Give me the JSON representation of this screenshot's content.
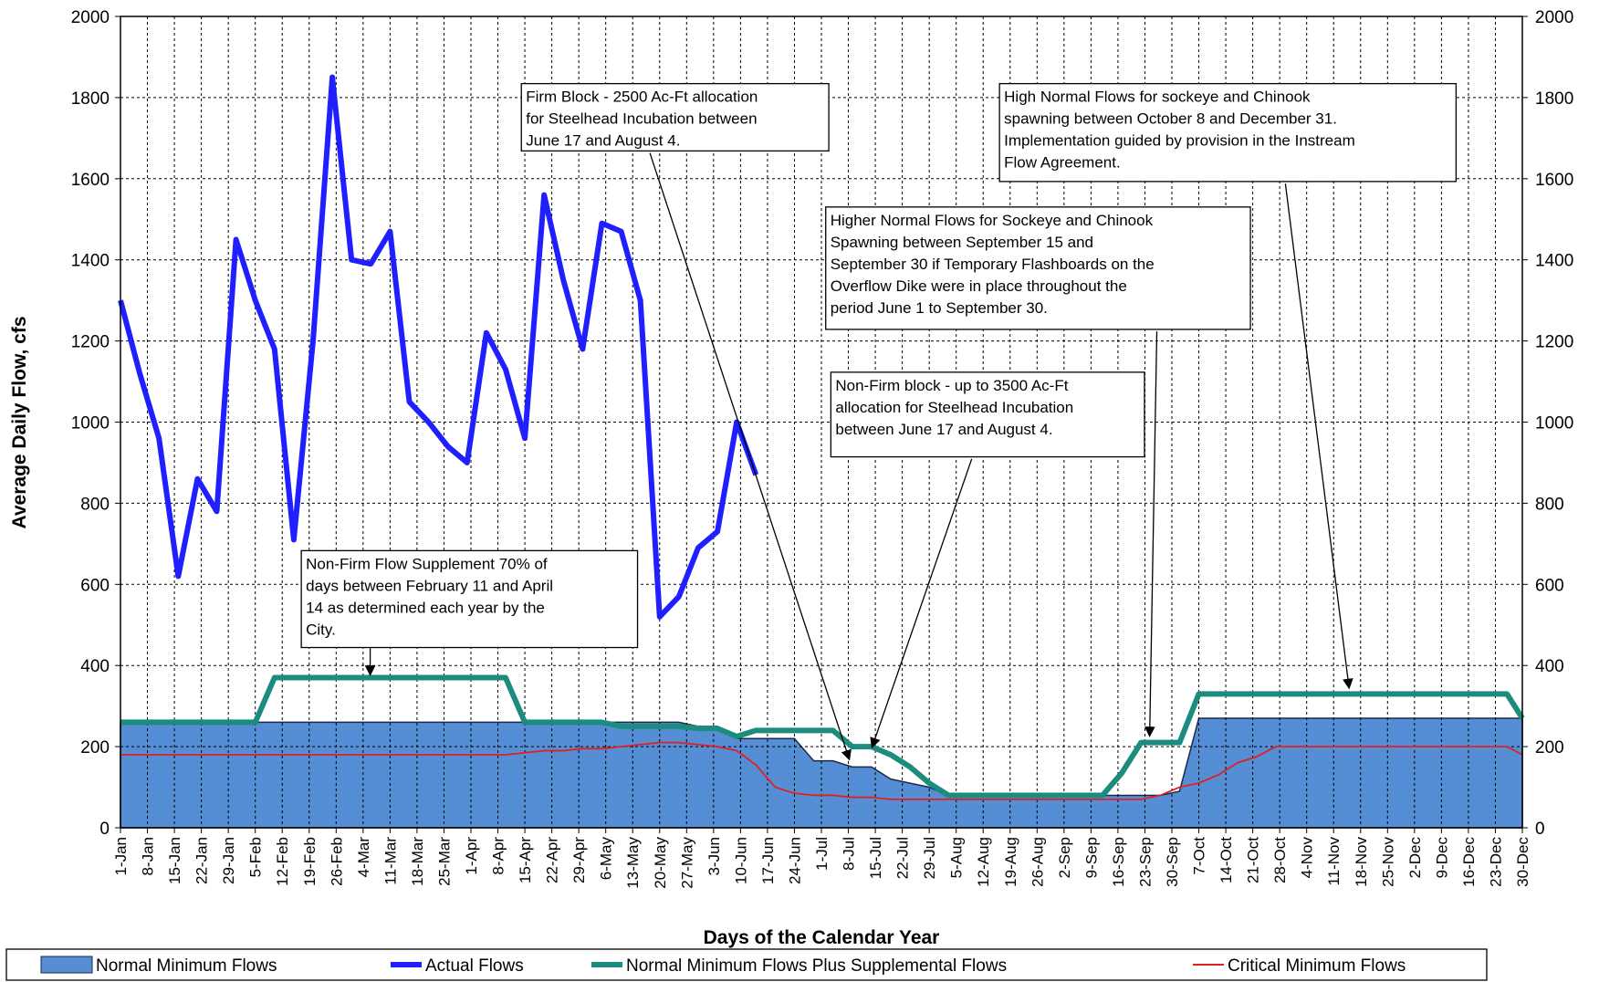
{
  "chart_data": {
    "type": "line",
    "xlabel": "Days of the Calendar Year",
    "ylabel": "Average Daily Flow, cfs",
    "x": [
      0,
      5,
      10,
      15,
      20,
      25,
      30,
      35,
      40,
      45,
      50,
      55,
      60,
      65,
      70,
      75,
      80,
      85,
      90,
      95,
      100,
      105,
      110,
      115,
      120,
      125,
      130,
      135,
      140,
      145,
      150,
      155,
      160,
      165,
      170,
      175,
      180,
      185,
      190,
      195,
      200,
      205,
      210,
      215,
      220,
      225,
      230,
      235,
      240,
      245,
      250,
      255,
      260,
      265,
      270,
      275,
      280,
      285,
      290,
      295,
      300,
      305,
      310,
      315,
      320,
      325,
      330,
      335,
      340,
      345,
      350,
      355,
      360,
      364
    ],
    "series": [
      {
        "name": "Normal Minimum Flows",
        "kind": "area",
        "color": "#558ed5",
        "values": [
          260,
          260,
          260,
          260,
          260,
          260,
          260,
          260,
          260,
          260,
          260,
          260,
          260,
          260,
          260,
          260,
          260,
          260,
          260,
          260,
          260,
          260,
          260,
          260,
          260,
          260,
          260,
          260,
          260,
          260,
          250,
          250,
          220,
          220,
          220,
          220,
          165,
          165,
          150,
          150,
          120,
          110,
          100,
          80,
          80,
          80,
          80,
          80,
          80,
          80,
          80,
          80,
          80,
          80,
          80,
          90,
          270,
          270,
          270,
          270,
          270,
          270,
          270,
          270,
          270,
          270,
          270,
          270,
          270,
          270,
          270,
          270,
          270,
          270
        ]
      },
      {
        "name": "Actual Flows",
        "kind": "line",
        "color": "#1f1fff",
        "values": [
          1300,
          1120,
          960,
          620,
          860,
          780,
          1450,
          1300,
          1180,
          710,
          1200,
          1850,
          1400,
          1390,
          1470,
          1050,
          1000,
          940,
          900,
          1220,
          1130,
          960,
          1560,
          1350,
          1180,
          1490,
          1470,
          1300,
          520,
          570,
          690,
          730,
          1000,
          870,
          null,
          null,
          null,
          null,
          null,
          null,
          null,
          null,
          null,
          null,
          null,
          null,
          null,
          null,
          null,
          null,
          null,
          null,
          null,
          null,
          null,
          null,
          null,
          null,
          null,
          null,
          null,
          null,
          null,
          null,
          null,
          null,
          null,
          null,
          null,
          null,
          null,
          null,
          null,
          null
        ]
      },
      {
        "name": "Normal Minimum Flows Plus Supplemental Flows",
        "kind": "line",
        "color": "#1b8c7d",
        "values": [
          260,
          260,
          260,
          260,
          260,
          260,
          260,
          260,
          370,
          370,
          370,
          370,
          370,
          370,
          370,
          370,
          370,
          370,
          370,
          370,
          370,
          260,
          260,
          260,
          260,
          260,
          250,
          250,
          250,
          250,
          245,
          245,
          225,
          240,
          240,
          240,
          240,
          240,
          200,
          200,
          180,
          150,
          110,
          80,
          80,
          80,
          80,
          80,
          80,
          80,
          80,
          80,
          135,
          210,
          210,
          210,
          330,
          330,
          330,
          330,
          330,
          330,
          330,
          330,
          330,
          330,
          330,
          330,
          330,
          330,
          330,
          330,
          330,
          270
        ]
      },
      {
        "name": "Critical Minimum Flows",
        "kind": "line",
        "color": "#e02020",
        "values": [
          180,
          180,
          180,
          180,
          180,
          180,
          180,
          180,
          180,
          180,
          180,
          180,
          180,
          180,
          180,
          180,
          180,
          180,
          180,
          180,
          180,
          185,
          190,
          190,
          195,
          195,
          200,
          205,
          210,
          210,
          205,
          200,
          190,
          155,
          100,
          85,
          80,
          80,
          75,
          75,
          70,
          70,
          70,
          70,
          70,
          70,
          70,
          70,
          70,
          70,
          70,
          70,
          70,
          70,
          80,
          100,
          110,
          130,
          160,
          175,
          200,
          200,
          200,
          200,
          200,
          200,
          200,
          200,
          200,
          200,
          200,
          200,
          200,
          180
        ]
      }
    ],
    "xlim": [
      0,
      364
    ],
    "xticks": [
      {
        "value": 0,
        "label": "1-Jan"
      },
      {
        "value": 7,
        "label": "8-Jan"
      },
      {
        "value": 14,
        "label": "15-Jan"
      },
      {
        "value": 21,
        "label": "22-Jan"
      },
      {
        "value": 28,
        "label": "29-Jan"
      },
      {
        "value": 35,
        "label": "5-Feb"
      },
      {
        "value": 42,
        "label": "12-Feb"
      },
      {
        "value": 49,
        "label": "19-Feb"
      },
      {
        "value": 56,
        "label": "26-Feb"
      },
      {
        "value": 63,
        "label": "4-Mar"
      },
      {
        "value": 70,
        "label": "11-Mar"
      },
      {
        "value": 77,
        "label": "18-Mar"
      },
      {
        "value": 84,
        "label": "25-Mar"
      },
      {
        "value": 91,
        "label": "1-Apr"
      },
      {
        "value": 98,
        "label": "8-Apr"
      },
      {
        "value": 105,
        "label": "15-Apr"
      },
      {
        "value": 112,
        "label": "22-Apr"
      },
      {
        "value": 119,
        "label": "29-Apr"
      },
      {
        "value": 126,
        "label": "6-May"
      },
      {
        "value": 133,
        "label": "13-May"
      },
      {
        "value": 140,
        "label": "20-May"
      },
      {
        "value": 147,
        "label": "27-May"
      },
      {
        "value": 154,
        "label": "3-Jun"
      },
      {
        "value": 161,
        "label": "10-Jun"
      },
      {
        "value": 168,
        "label": "17-Jun"
      },
      {
        "value": 175,
        "label": "24-Jun"
      },
      {
        "value": 182,
        "label": "1-Jul"
      },
      {
        "value": 189,
        "label": "8-Jul"
      },
      {
        "value": 196,
        "label": "15-Jul"
      },
      {
        "value": 203,
        "label": "22-Jul"
      },
      {
        "value": 210,
        "label": "29-Jul"
      },
      {
        "value": 217,
        "label": "5-Aug"
      },
      {
        "value": 224,
        "label": "12-Aug"
      },
      {
        "value": 231,
        "label": "19-Aug"
      },
      {
        "value": 238,
        "label": "26-Aug"
      },
      {
        "value": 245,
        "label": "2-Sep"
      },
      {
        "value": 252,
        "label": "9-Sep"
      },
      {
        "value": 259,
        "label": "16-Sep"
      },
      {
        "value": 266,
        "label": "23-Sep"
      },
      {
        "value": 273,
        "label": "30-Sep"
      },
      {
        "value": 280,
        "label": "7-Oct"
      },
      {
        "value": 287,
        "label": "14-Oct"
      },
      {
        "value": 294,
        "label": "21-Oct"
      },
      {
        "value": 301,
        "label": "28-Oct"
      },
      {
        "value": 308,
        "label": "4-Nov"
      },
      {
        "value": 315,
        "label": "11-Nov"
      },
      {
        "value": 322,
        "label": "18-Nov"
      },
      {
        "value": 329,
        "label": "25-Nov"
      },
      {
        "value": 336,
        "label": "2-Dec"
      },
      {
        "value": 343,
        "label": "9-Dec"
      },
      {
        "value": 350,
        "label": "16-Dec"
      },
      {
        "value": 357,
        "label": "23-Dec"
      },
      {
        "value": 364,
        "label": "30-Dec"
      }
    ],
    "ylim": [
      0,
      2000
    ],
    "yticks": [
      0,
      200,
      400,
      600,
      800,
      1000,
      1200,
      1400,
      1600,
      1800,
      2000
    ],
    "y2lim": [
      0,
      2000
    ],
    "y2ticks": [
      0,
      200,
      400,
      600,
      800,
      1000,
      1200,
      1400,
      1600,
      1800,
      2000
    ],
    "grid": true,
    "legend": "bottom",
    "annotations": [
      [
        "Firm Block - 2500 Ac-Ft allocation",
        "for Steelhead Incubation between",
        "June 17 and August 4."
      ],
      [
        "High Normal Flows for sockeye and Chinook",
        "spawning between October 8 and December 31.",
        "Implementation guided by provision in the Instream",
        "Flow Agreement."
      ],
      [
        "Higher Normal Flows for Sockeye and Chinook",
        "Spawning between September 15 and",
        "September 30 if Temporary Flashboards on the",
        "Overflow Dike were in place throughout the",
        "period June 1 to September 30."
      ],
      [
        "Non-Firm block - up to 3500 Ac-Ft",
        "allocation for Steelhead Incubation",
        "between June 17 and August 4."
      ],
      [
        "Non-Firm Flow Supplement 70% of",
        "days between February 11 and April",
        "14 as determined each year by the",
        "City."
      ]
    ]
  }
}
